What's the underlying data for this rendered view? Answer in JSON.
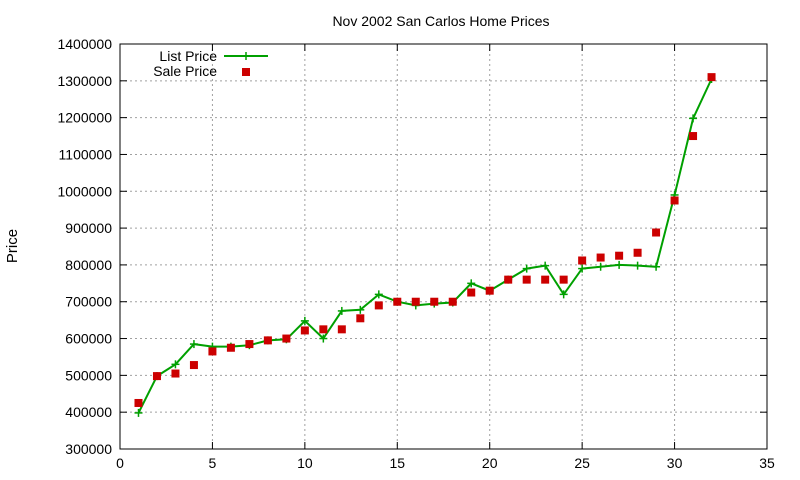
{
  "chart_data": {
    "type": "line",
    "title": "Nov 2002 San Carlos Home Prices",
    "xlabel": "",
    "ylabel": "Price",
    "xlim": [
      0,
      35
    ],
    "ylim": [
      300000,
      1400000
    ],
    "xticks": [
      0,
      5,
      10,
      15,
      20,
      25,
      30,
      35
    ],
    "yticks": [
      300000,
      400000,
      500000,
      600000,
      700000,
      800000,
      900000,
      1000000,
      1100000,
      1200000,
      1300000,
      1400000
    ],
    "grid": true,
    "legend_position": "top-left",
    "series": [
      {
        "name": "List Price",
        "style": "line+plus",
        "color": "#00a000",
        "x": [
          1,
          2,
          3,
          4,
          5,
          6,
          7,
          8,
          9,
          10,
          11,
          12,
          13,
          14,
          15,
          16,
          17,
          18,
          19,
          20,
          21,
          22,
          23,
          24,
          25,
          26,
          27,
          28,
          29,
          30,
          31,
          32
        ],
        "y": [
          398000,
          498000,
          530000,
          585000,
          578000,
          578000,
          582000,
          595000,
          598000,
          648000,
          600000,
          675000,
          678000,
          720000,
          700000,
          690000,
          695000,
          698000,
          750000,
          730000,
          760000,
          790000,
          798000,
          720000,
          790000,
          795000,
          800000,
          798000,
          795000,
          990000,
          1198000,
          1305000
        ]
      },
      {
        "name": "Sale Price",
        "style": "square",
        "color": "#cc0000",
        "x": [
          1,
          2,
          3,
          4,
          5,
          6,
          7,
          8,
          9,
          10,
          11,
          12,
          13,
          14,
          15,
          16,
          17,
          18,
          19,
          20,
          21,
          22,
          23,
          24,
          25,
          26,
          27,
          28,
          29,
          30,
          31,
          32
        ],
        "y": [
          425000,
          498000,
          505000,
          528000,
          565000,
          575000,
          585000,
          595000,
          600000,
          622000,
          625000,
          625000,
          655000,
          690000,
          700000,
          700000,
          700000,
          700000,
          725000,
          730000,
          760000,
          760000,
          760000,
          760000,
          812000,
          820000,
          825000,
          833000,
          888000,
          975000,
          1150000,
          1310000
        ]
      }
    ]
  }
}
